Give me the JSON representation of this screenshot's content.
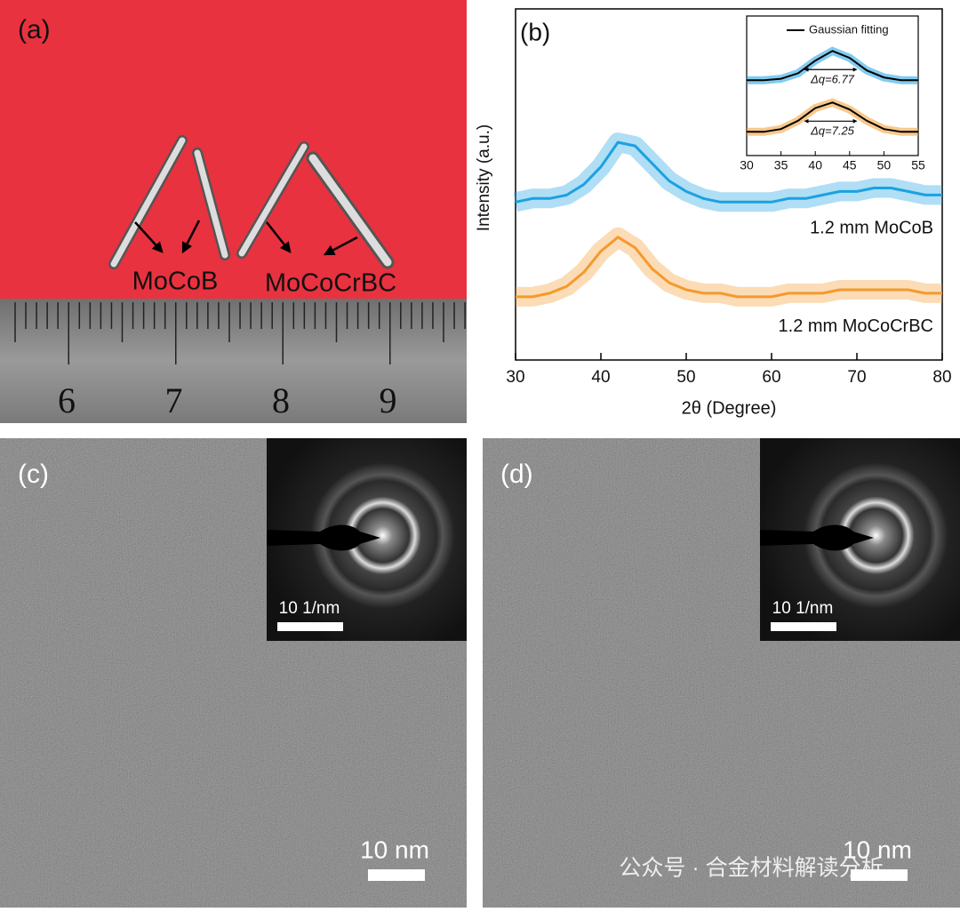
{
  "panels": {
    "a": {
      "label": "(a)",
      "samples": [
        "MoCoB",
        "MoCoCrBC"
      ],
      "ruler": [
        "6",
        "7",
        "8",
        "9"
      ]
    },
    "b": {
      "label": "(b)",
      "chart_data": {
        "type": "line",
        "x_label": "2θ (Degree)",
        "y_label": "Intensity (a.u.)",
        "x": [
          30,
          32,
          34,
          36,
          38,
          40,
          42,
          44,
          46,
          48,
          50,
          52,
          54,
          56,
          58,
          60,
          62,
          64,
          66,
          68,
          70,
          72,
          74,
          76,
          78,
          80
        ],
        "series": [
          {
            "name": "1.2 mm MoCoB",
            "color": "#1ba1e2",
            "values": [
              45,
              46,
              46,
              47,
              50,
              55,
              62,
              61,
              56,
              51,
              48,
              46,
              45,
              45,
              45,
              45,
              46,
              46,
              47,
              48,
              48,
              49,
              49,
              48,
              47,
              47
            ]
          },
          {
            "name": "1.2 mm MoCoCrBC",
            "color": "#f39a2d",
            "values": [
              18,
              18,
              19,
              21,
              25,
              31,
              35,
              32,
              26,
              22,
              20,
              19,
              19,
              18,
              18,
              18,
              19,
              19,
              19,
              20,
              20,
              20,
              20,
              20,
              19,
              19
            ]
          }
        ],
        "xlim": [
          30,
          80
        ],
        "xticks": [
          30,
          40,
          50,
          60,
          70,
          80
        ],
        "ylim": [
          0,
          100
        ],
        "inset": {
          "legend": "Gaussian fitting",
          "fit_color": "#000000",
          "x": [
            30,
            32.5,
            35,
            37.5,
            40,
            42.5,
            45,
            47.5,
            50,
            52.5,
            55
          ],
          "xlim": [
            30,
            55
          ],
          "xticks": [
            30,
            35,
            40,
            45,
            50,
            55
          ],
          "ylim": [
            0,
            100
          ],
          "series": [
            {
              "color": "#1ba1e2",
              "label": "Δq=6.77",
              "values": [
                54,
                54,
                55,
                59,
                68,
                75,
                70,
                61,
                56,
                54,
                54
              ]
            },
            {
              "color": "#f39a2d",
              "label": "Δq=7.25",
              "values": [
                17,
                17,
                19,
                25,
                34,
                38,
                33,
                25,
                19,
                17,
                17
              ]
            }
          ]
        }
      }
    },
    "c": {
      "label": "(c)",
      "scale_bar": "10 nm",
      "inset_scale_bar": "10 1/nm"
    },
    "d": {
      "label": "(d)",
      "scale_bar": "10 nm",
      "inset_scale_bar": "10 1/nm"
    }
  },
  "watermark": "公众号 · 合金材料解读分析"
}
